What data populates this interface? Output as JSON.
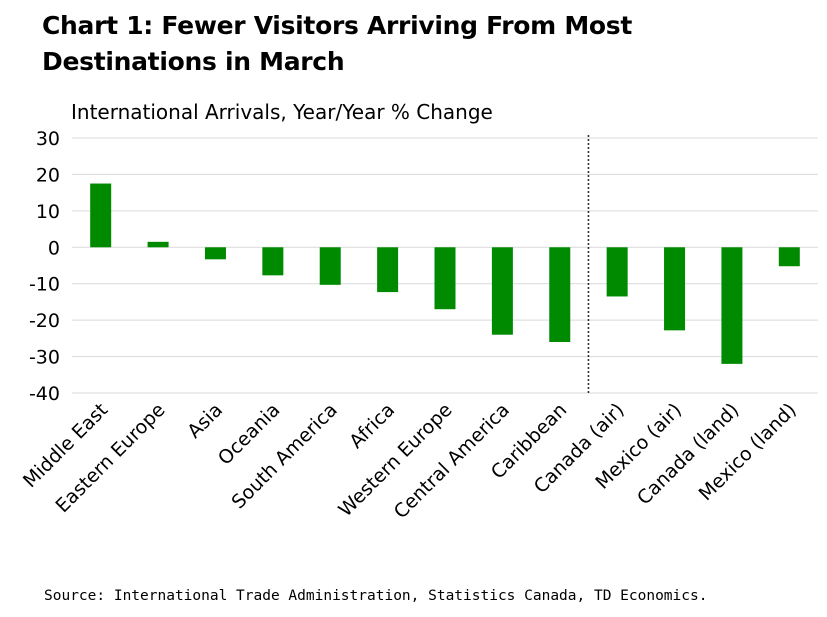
{
  "title_lines": [
    "Chart 1: Fewer Visitors Arriving From Most",
    "Destinations in March"
  ],
  "source": "Source: International Trade Administration, Statistics Canada, TD Economics.",
  "chart_data": {
    "type": "bar",
    "title": "Chart 1: Fewer Visitors Arriving From Most Destinations in March",
    "subtitle": "International Arrivals, Year/Year % Change",
    "xlabel": "",
    "ylabel": "International Arrivals, Year/Year % Change",
    "ylim": [
      -40,
      30
    ],
    "yticks": [
      30,
      20,
      10,
      0,
      -10,
      -20,
      -30,
      -40
    ],
    "grid": true,
    "bar_color": "#008a00",
    "gridline_color": "#d9d9d9",
    "divider_after_category": "Caribbean",
    "categories": [
      "Middle East",
      "Eastern Europe",
      "Asia",
      "Oceania",
      "South America",
      "Africa",
      "Western Europe",
      "Central America",
      "Caribbean",
      "Canada (air)",
      "Mexico (air)",
      "Canada (land)",
      "Mexico (land)"
    ],
    "values": [
      17.5,
      1.5,
      -3.3,
      -7.7,
      -10.3,
      -12.3,
      -17.0,
      -24.0,
      -26.0,
      -13.5,
      -22.8,
      -32.0,
      -5.2
    ]
  }
}
